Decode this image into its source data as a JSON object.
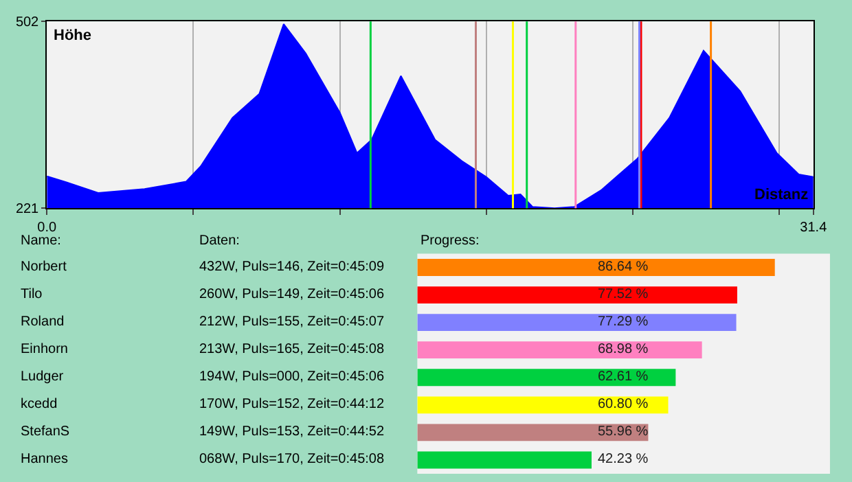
{
  "chart_data": [
    {
      "type": "area",
      "title": "Höhe",
      "xlabel": "Distanz",
      "color": "#0000ff",
      "x": [
        0,
        0.8,
        2.1,
        4.0,
        5.7,
        6.3,
        7.6,
        8.7,
        9.7,
        10.6,
        12.0,
        12.7,
        13.3,
        14.5,
        15.9,
        17.0,
        18.0,
        18.9,
        19.4,
        19.9,
        20.8,
        21.6,
        22.7,
        24.2,
        25.5,
        26.9,
        28.4,
        29.9,
        30.8,
        31.4
      ],
      "values": [
        269,
        260,
        244,
        250,
        261,
        284,
        357,
        393,
        498,
        454,
        365,
        304,
        324,
        420,
        324,
        292,
        268,
        240,
        242,
        223,
        221,
        223,
        248,
        296,
        357,
        458,
        397,
        304,
        272,
        268
      ],
      "xlim": [
        0,
        31.4
      ],
      "ylim": [
        221,
        502
      ],
      "xticks": [
        {
          "value": 0,
          "label": "0.0"
        },
        {
          "value": 6,
          "label": null
        },
        {
          "value": 12,
          "label": null
        },
        {
          "value": 18,
          "label": null
        },
        {
          "value": 24,
          "label": null
        },
        {
          "value": 30,
          "label": null
        },
        31.4
      ],
      "yticks": [
        221,
        502
      ],
      "grid": "x",
      "ref_lines": [
        {
          "axis": "x",
          "value": 27.2,
          "color": "#ff8000"
        },
        {
          "axis": "x",
          "value": 24.34,
          "color": "#ff0000"
        },
        {
          "axis": "x",
          "value": 24.27,
          "color": "#8080ff"
        },
        {
          "axis": "x",
          "value": 21.66,
          "color": "#ff80c0"
        },
        {
          "axis": "x",
          "value": 19.66,
          "color": "#00d040"
        },
        {
          "axis": "x",
          "value": 19.09,
          "color": "#ffff00"
        },
        {
          "axis": "x",
          "value": 17.57,
          "color": "#c08080"
        },
        {
          "axis": "x",
          "value": 13.26,
          "color": "#00d040"
        }
      ]
    },
    {
      "type": "bar",
      "orientation": "horizontal",
      "xlabel": "Progress:",
      "ylabel": "Name:",
      "categories": [
        "Norbert",
        "Tilo",
        "Roland",
        "Einhorn",
        "Ludger",
        "kcedd",
        "StefanS",
        "Hannes"
      ],
      "values": [
        86.64,
        77.52,
        77.29,
        68.98,
        62.61,
        60.8,
        55.96,
        42.23
      ],
      "colors": [
        "#ff8000",
        "#ff0000",
        "#8080ff",
        "#ff80c0",
        "#00d040",
        "#ffff00",
        "#c08080",
        "#00d040"
      ],
      "value_labels": [
        "86.64 %",
        "77.52 %",
        "77.29 %",
        "68.98 %",
        "62.61 %",
        "60.80 %",
        "55.96 %",
        "42.23 %"
      ],
      "xlim": [
        0,
        100
      ],
      "annotations": [
        "Daten:",
        "432W, Puls=146, Zeit=0:45:09",
        "260W, Puls=149, Zeit=0:45:06",
        "212W, Puls=155, Zeit=0:45:07",
        "213W, Puls=165, Zeit=0:45:08",
        "194W, Puls=000, Zeit=0:45:06",
        "170W, Puls=152, Zeit=0:44:12",
        "149W, Puls=153, Zeit=0:44:52",
        "068W, Puls=170, Zeit=0:45:08"
      ]
    }
  ]
}
